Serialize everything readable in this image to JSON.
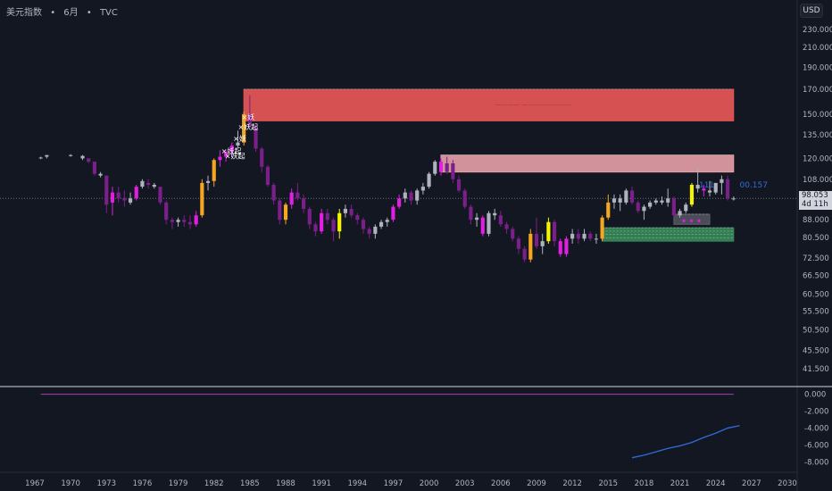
{
  "header": {
    "symbol": "美元指数",
    "interval": "6月",
    "source": "TVC"
  },
  "currency_label": "USD",
  "last_price": {
    "value": "98.053",
    "countdown": "4d 11h"
  },
  "annotations": {
    "label_111": "111",
    "label_100157": "00.157",
    "marks": [
      "妖",
      "妖起",
      "妖",
      "妖起",
      "妖起"
    ],
    "upper_zone_text": "———— ————————"
  },
  "colors": {
    "background": "#131722",
    "bear_dark": "#7b1f8a",
    "bear_bright": "#e020e0",
    "bull_orange": "#f5a623",
    "bull_yellow": "#f5f500",
    "neutral_gray": "#b0b3bd",
    "zone_red": "#e05555",
    "zone_pink": "#e8a0a8",
    "zone_green": "#3a8a5a",
    "indicator_line": "#2f6bdc",
    "zero_line": "#b03ab0"
  },
  "chart_data": [
    {
      "type": "candlestick",
      "scale": "log",
      "y_ticks": [
        "230.000",
        "210.000",
        "190.000",
        "170.000",
        "150.000",
        "135.000",
        "120.000",
        "108.000",
        "98.053",
        "88.000",
        "80.500",
        "72.500",
        "66.500",
        "60.500",
        "55.500",
        "50.500",
        "45.500",
        "41.500"
      ],
      "x_ticks": [
        "1967",
        "1970",
        "1973",
        "1976",
        "1979",
        "1982",
        "1985",
        "1988",
        "1991",
        "1994",
        "1997",
        "2000",
        "2003",
        "2006",
        "2009",
        "2012",
        "2015",
        "2018",
        "2021",
        "2024",
        "2027",
        "2030"
      ],
      "candles": [
        {
          "t": 1967.5,
          "o": 120,
          "h": 121,
          "l": 119.5,
          "c": 120.5,
          "k": "g"
        },
        {
          "t": 1968.0,
          "o": 121,
          "h": 122,
          "l": 120,
          "c": 122,
          "k": "g"
        },
        {
          "t": 1970.0,
          "o": 122,
          "h": 122.5,
          "l": 121,
          "c": 122,
          "k": "g"
        },
        {
          "t": 1971.0,
          "o": 121.5,
          "h": 122,
          "l": 119,
          "c": 120,
          "k": "g"
        },
        {
          "t": 1971.5,
          "o": 120,
          "h": 120,
          "l": 117,
          "c": 118,
          "k": "d"
        },
        {
          "t": 1972.0,
          "o": 118,
          "h": 118,
          "l": 110,
          "c": 111,
          "k": "d"
        },
        {
          "t": 1972.5,
          "o": 111,
          "h": 112,
          "l": 109,
          "c": 110,
          "k": "g"
        },
        {
          "t": 1973.0,
          "o": 110,
          "h": 110,
          "l": 91,
          "c": 95,
          "k": "d"
        },
        {
          "t": 1973.5,
          "o": 96,
          "h": 104,
          "l": 90,
          "c": 101,
          "k": "b"
        },
        {
          "t": 1974.0,
          "o": 101,
          "h": 104,
          "l": 96,
          "c": 98,
          "k": "d"
        },
        {
          "t": 1974.5,
          "o": 98,
          "h": 102,
          "l": 94,
          "c": 97,
          "k": "d"
        },
        {
          "t": 1975.0,
          "o": 96,
          "h": 101,
          "l": 95,
          "c": 98,
          "k": "g"
        },
        {
          "t": 1975.5,
          "o": 98,
          "h": 105,
          "l": 97,
          "c": 104,
          "k": "b"
        },
        {
          "t": 1976.0,
          "o": 104,
          "h": 108,
          "l": 103,
          "c": 107,
          "k": "g"
        },
        {
          "t": 1976.5,
          "o": 106,
          "h": 108,
          "l": 103,
          "c": 105,
          "k": "d"
        },
        {
          "t": 1977.0,
          "o": 105,
          "h": 106,
          "l": 103,
          "c": 104,
          "k": "g"
        },
        {
          "t": 1977.5,
          "o": 104,
          "h": 104,
          "l": 95,
          "c": 96,
          "k": "d"
        },
        {
          "t": 1978.0,
          "o": 96,
          "h": 97,
          "l": 86,
          "c": 88,
          "k": "d"
        },
        {
          "t": 1978.5,
          "o": 88,
          "h": 89,
          "l": 84,
          "c": 87,
          "k": "d"
        },
        {
          "t": 1979.0,
          "o": 87,
          "h": 89,
          "l": 85,
          "c": 88,
          "k": "g"
        },
        {
          "t": 1979.5,
          "o": 88,
          "h": 90,
          "l": 85,
          "c": 87,
          "k": "d"
        },
        {
          "t": 1980.0,
          "o": 87,
          "h": 90,
          "l": 84,
          "c": 86,
          "k": "d"
        },
        {
          "t": 1980.5,
          "o": 86,
          "h": 92,
          "l": 85,
          "c": 90,
          "k": "b"
        },
        {
          "t": 1981.0,
          "o": 90,
          "h": 108,
          "l": 89,
          "c": 106,
          "k": "o"
        },
        {
          "t": 1981.5,
          "o": 106,
          "h": 110,
          "l": 102,
          "c": 107,
          "k": "g"
        },
        {
          "t": 1982.0,
          "o": 107,
          "h": 120,
          "l": 104,
          "c": 119,
          "k": "o"
        },
        {
          "t": 1982.5,
          "o": 119,
          "h": 125,
          "l": 115,
          "c": 121,
          "k": "b"
        },
        {
          "t": 1983.0,
          "o": 121,
          "h": 125,
          "l": 118,
          "c": 124,
          "k": "b"
        },
        {
          "t": 1983.5,
          "o": 124,
          "h": 130,
          "l": 121,
          "c": 128,
          "k": "b"
        },
        {
          "t": 1984.0,
          "o": 128,
          "h": 138,
          "l": 126,
          "c": 130,
          "k": "g"
        },
        {
          "t": 1984.5,
          "o": 130,
          "h": 152,
          "l": 128,
          "c": 150,
          "k": "o"
        },
        {
          "t": 1985.0,
          "o": 150,
          "h": 165,
          "l": 140,
          "c": 141,
          "k": "d"
        },
        {
          "t": 1985.5,
          "o": 141,
          "h": 143,
          "l": 124,
          "c": 126,
          "k": "d"
        },
        {
          "t": 1986.0,
          "o": 126,
          "h": 127,
          "l": 112,
          "c": 115,
          "k": "d"
        },
        {
          "t": 1986.5,
          "o": 115,
          "h": 116,
          "l": 104,
          "c": 105,
          "k": "d"
        },
        {
          "t": 1987.0,
          "o": 105,
          "h": 106,
          "l": 95,
          "c": 97,
          "k": "d"
        },
        {
          "t": 1987.5,
          "o": 97,
          "h": 98,
          "l": 86,
          "c": 88,
          "k": "d"
        },
        {
          "t": 1988.0,
          "o": 88,
          "h": 96,
          "l": 86,
          "c": 95,
          "k": "o"
        },
        {
          "t": 1988.5,
          "o": 95,
          "h": 103,
          "l": 93,
          "c": 101,
          "k": "b"
        },
        {
          "t": 1989.0,
          "o": 101,
          "h": 106,
          "l": 97,
          "c": 98,
          "k": "d"
        },
        {
          "t": 1989.5,
          "o": 98,
          "h": 100,
          "l": 91,
          "c": 93,
          "k": "d"
        },
        {
          "t": 1990.0,
          "o": 93,
          "h": 94,
          "l": 84,
          "c": 86,
          "k": "d"
        },
        {
          "t": 1990.5,
          "o": 86,
          "h": 87,
          "l": 81,
          "c": 83,
          "k": "d"
        },
        {
          "t": 1991.0,
          "o": 83,
          "h": 93,
          "l": 82,
          "c": 91,
          "k": "b"
        },
        {
          "t": 1991.5,
          "o": 91,
          "h": 93,
          "l": 86,
          "c": 88,
          "k": "d"
        },
        {
          "t": 1992.0,
          "o": 88,
          "h": 89,
          "l": 79,
          "c": 83,
          "k": "d"
        },
        {
          "t": 1992.5,
          "o": 83,
          "h": 93,
          "l": 80,
          "c": 91,
          "k": "y"
        },
        {
          "t": 1993.0,
          "o": 91,
          "h": 95,
          "l": 89,
          "c": 93,
          "k": "g"
        },
        {
          "t": 1993.5,
          "o": 93,
          "h": 95,
          "l": 89,
          "c": 90,
          "k": "d"
        },
        {
          "t": 1994.0,
          "o": 90,
          "h": 91,
          "l": 86,
          "c": 88,
          "k": "d"
        },
        {
          "t": 1994.5,
          "o": 88,
          "h": 89,
          "l": 82,
          "c": 84,
          "k": "d"
        },
        {
          "t": 1995.0,
          "o": 84,
          "h": 85,
          "l": 80,
          "c": 82,
          "k": "d"
        },
        {
          "t": 1995.5,
          "o": 82,
          "h": 86,
          "l": 80,
          "c": 85,
          "k": "g"
        },
        {
          "t": 1996.0,
          "o": 85,
          "h": 88,
          "l": 84,
          "c": 87,
          "k": "g"
        },
        {
          "t": 1996.5,
          "o": 87,
          "h": 89,
          "l": 85,
          "c": 88,
          "k": "g"
        },
        {
          "t": 1997.0,
          "o": 88,
          "h": 95,
          "l": 87,
          "c": 94,
          "k": "b"
        },
        {
          "t": 1997.5,
          "o": 94,
          "h": 100,
          "l": 93,
          "c": 98,
          "k": "b"
        },
        {
          "t": 1998.0,
          "o": 98,
          "h": 103,
          "l": 96,
          "c": 101,
          "k": "g"
        },
        {
          "t": 1998.5,
          "o": 101,
          "h": 102,
          "l": 95,
          "c": 97,
          "k": "d"
        },
        {
          "t": 1999.0,
          "o": 97,
          "h": 103,
          "l": 95,
          "c": 102,
          "k": "g"
        },
        {
          "t": 1999.5,
          "o": 102,
          "h": 106,
          "l": 100,
          "c": 104,
          "k": "g"
        },
        {
          "t": 2000.0,
          "o": 104,
          "h": 112,
          "l": 103,
          "c": 111,
          "k": "g"
        },
        {
          "t": 2000.5,
          "o": 111,
          "h": 119,
          "l": 110,
          "c": 118,
          "k": "g"
        },
        {
          "t": 2001.0,
          "o": 118,
          "h": 120,
          "l": 110,
          "c": 112,
          "k": "b"
        },
        {
          "t": 2001.5,
          "o": 112,
          "h": 121,
          "l": 111,
          "c": 117,
          "k": "d"
        },
        {
          "t": 2002.0,
          "o": 117,
          "h": 119,
          "l": 106,
          "c": 108,
          "k": "d"
        },
        {
          "t": 2002.5,
          "o": 108,
          "h": 110,
          "l": 101,
          "c": 102,
          "k": "d"
        },
        {
          "t": 2003.0,
          "o": 102,
          "h": 103,
          "l": 93,
          "c": 94,
          "k": "d"
        },
        {
          "t": 2003.5,
          "o": 94,
          "h": 95,
          "l": 86,
          "c": 88,
          "k": "d"
        },
        {
          "t": 2004.0,
          "o": 88,
          "h": 91,
          "l": 85,
          "c": 89,
          "k": "g"
        },
        {
          "t": 2004.5,
          "o": 89,
          "h": 90,
          "l": 81,
          "c": 82,
          "k": "b"
        },
        {
          "t": 2005.0,
          "o": 82,
          "h": 92,
          "l": 81,
          "c": 91,
          "k": "g"
        },
        {
          "t": 2005.5,
          "o": 91,
          "h": 93,
          "l": 88,
          "c": 90,
          "k": "g"
        },
        {
          "t": 2006.0,
          "o": 90,
          "h": 92,
          "l": 85,
          "c": 86,
          "k": "d"
        },
        {
          "t": 2006.5,
          "o": 86,
          "h": 87,
          "l": 82,
          "c": 84,
          "k": "d"
        },
        {
          "t": 2007.0,
          "o": 84,
          "h": 85,
          "l": 79,
          "c": 80,
          "k": "d"
        },
        {
          "t": 2007.5,
          "o": 80,
          "h": 81,
          "l": 74,
          "c": 76,
          "k": "d"
        },
        {
          "t": 2008.0,
          "o": 76,
          "h": 77,
          "l": 71,
          "c": 72,
          "k": "d"
        },
        {
          "t": 2008.5,
          "o": 72,
          "h": 84,
          "l": 71,
          "c": 82,
          "k": "o"
        },
        {
          "t": 2009.0,
          "o": 82,
          "h": 89,
          "l": 76,
          "c": 77,
          "k": "d"
        },
        {
          "t": 2009.5,
          "o": 77,
          "h": 82,
          "l": 74,
          "c": 79,
          "k": "g"
        },
        {
          "t": 2010.0,
          "o": 79,
          "h": 89,
          "l": 78,
          "c": 87,
          "k": "y"
        },
        {
          "t": 2010.5,
          "o": 87,
          "h": 88,
          "l": 77,
          "c": 79,
          "k": "d"
        },
        {
          "t": 2011.0,
          "o": 79,
          "h": 80,
          "l": 73,
          "c": 74,
          "k": "b"
        },
        {
          "t": 2011.5,
          "o": 74,
          "h": 81,
          "l": 73,
          "c": 80,
          "k": "b"
        },
        {
          "t": 2012.0,
          "o": 80,
          "h": 84,
          "l": 78,
          "c": 82,
          "k": "g"
        },
        {
          "t": 2012.5,
          "o": 82,
          "h": 84,
          "l": 78,
          "c": 80,
          "k": "d"
        },
        {
          "t": 2013.0,
          "o": 80,
          "h": 84,
          "l": 79,
          "c": 82,
          "k": "g"
        },
        {
          "t": 2013.5,
          "o": 82,
          "h": 83,
          "l": 79,
          "c": 80,
          "k": "d"
        },
        {
          "t": 2014.0,
          "o": 80,
          "h": 82,
          "l": 78,
          "c": 80,
          "k": "g"
        },
        {
          "t": 2014.5,
          "o": 80,
          "h": 90,
          "l": 79,
          "c": 89,
          "k": "o"
        },
        {
          "t": 2015.0,
          "o": 89,
          "h": 100,
          "l": 88,
          "c": 96,
          "k": "o"
        },
        {
          "t": 2015.5,
          "o": 96,
          "h": 100,
          "l": 93,
          "c": 98,
          "k": "g"
        },
        {
          "t": 2016.0,
          "o": 98,
          "h": 100,
          "l": 92,
          "c": 96,
          "k": "g"
        },
        {
          "t": 2016.5,
          "o": 96,
          "h": 103,
          "l": 95,
          "c": 102,
          "k": "g"
        },
        {
          "t": 2017.0,
          "o": 102,
          "h": 104,
          "l": 95,
          "c": 96,
          "k": "d"
        },
        {
          "t": 2017.5,
          "o": 96,
          "h": 97,
          "l": 91,
          "c": 92,
          "k": "d"
        },
        {
          "t": 2018.0,
          "o": 92,
          "h": 95,
          "l": 88,
          "c": 94,
          "k": "g"
        },
        {
          "t": 2018.5,
          "o": 94,
          "h": 97,
          "l": 93,
          "c": 96,
          "k": "g"
        },
        {
          "t": 2019.0,
          "o": 96,
          "h": 98,
          "l": 95,
          "c": 97,
          "k": "g"
        },
        {
          "t": 2019.5,
          "o": 97,
          "h": 99,
          "l": 95,
          "c": 96,
          "k": "g"
        },
        {
          "t": 2020.0,
          "o": 96,
          "h": 103,
          "l": 94,
          "c": 98,
          "k": "g"
        },
        {
          "t": 2020.5,
          "o": 98,
          "h": 99,
          "l": 89,
          "c": 90,
          "k": "d"
        },
        {
          "t": 2021.0,
          "o": 90,
          "h": 93,
          "l": 89,
          "c": 92,
          "k": "g"
        },
        {
          "t": 2021.5,
          "o": 92,
          "h": 96,
          "l": 91,
          "c": 95,
          "k": "g"
        },
        {
          "t": 2022.0,
          "o": 95,
          "h": 106,
          "l": 94,
          "c": 105,
          "k": "y"
        },
        {
          "t": 2022.5,
          "o": 105,
          "h": 114,
          "l": 101,
          "c": 103,
          "k": "g"
        },
        {
          "t": 2023.0,
          "o": 103,
          "h": 105,
          "l": 99,
          "c": 102,
          "k": "b"
        },
        {
          "t": 2023.5,
          "o": 102,
          "h": 107,
          "l": 99,
          "c": 101,
          "k": "g"
        },
        {
          "t": 2024.0,
          "o": 101,
          "h": 106,
          "l": 100,
          "c": 106,
          "k": "g"
        },
        {
          "t": 2024.5,
          "o": 106,
          "h": 110,
          "l": 100,
          "c": 108,
          "k": "g"
        },
        {
          "t": 2025.0,
          "o": 108,
          "h": 110,
          "l": 97,
          "c": 98,
          "k": "d"
        },
        {
          "t": 2025.5,
          "o": 98,
          "h": 99,
          "l": 97,
          "c": 98,
          "k": "g"
        }
      ],
      "zones": [
        {
          "from": 1984.5,
          "to": 2025.5,
          "low": 145,
          "high": 170,
          "color": "zone_red"
        },
        {
          "from": 2001.0,
          "to": 2025.5,
          "low": 112,
          "high": 122,
          "color": "zone_pink"
        },
        {
          "from": 2014.5,
          "to": 2025.5,
          "low": 79,
          "high": 84.5,
          "color": "zone_green"
        },
        {
          "from": 2020.5,
          "to": 2023.5,
          "low": 86,
          "high": 90.5,
          "color": "zone_gray"
        }
      ]
    },
    {
      "type": "line",
      "y_ticks": [
        "0.000",
        "-2.000",
        "-4.000",
        "-6.000",
        "-8.000"
      ],
      "ylim": [
        -8.8,
        0.6
      ],
      "series": [
        {
          "x": [
            1967.5,
            2025.5
          ],
          "y": [
            0,
            0
          ],
          "color": "zero_line"
        },
        {
          "x": [
            2017,
            2018,
            2019,
            2020,
            2021,
            2022,
            2023,
            2024,
            2025,
            2026
          ],
          "y": [
            -7.5,
            -7.2,
            -6.8,
            -6.4,
            -6.1,
            -5.7,
            -5.1,
            -4.6,
            -4.0,
            -3.7
          ],
          "color": "indicator_line"
        }
      ]
    }
  ]
}
